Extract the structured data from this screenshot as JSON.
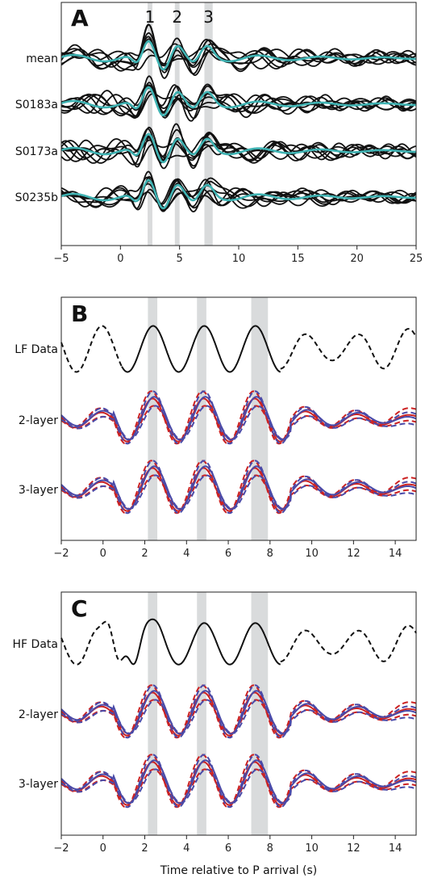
{
  "chart_data": [
    {
      "type": "line",
      "panel": "A",
      "xlim": [
        -5,
        25
      ],
      "xticks": [
        -5,
        0,
        5,
        10,
        15,
        20,
        25
      ],
      "tick_labels": [
        "−5",
        "0",
        "5",
        "10",
        "15",
        "20",
        "25"
      ],
      "band_labels": [
        "1",
        "2",
        "3"
      ],
      "bands": [
        [
          2.3,
          2.7
        ],
        [
          4.6,
          5.0
        ],
        [
          7.1,
          7.8
        ]
      ],
      "rows": [
        {
          "label": "mean",
          "offset": 3
        },
        {
          "label": "S0183a",
          "offset": 2
        },
        {
          "label": "S0173a",
          "offset": 1
        },
        {
          "label": "S0235b",
          "offset": 0
        }
      ],
      "series_colors": {
        "individual": "#111111",
        "mean": "#3fb3b3"
      }
    },
    {
      "type": "line",
      "panel": "B",
      "xlim": [
        -2,
        15
      ],
      "xticks": [
        -2,
        0,
        2,
        4,
        6,
        8,
        10,
        12,
        14
      ],
      "tick_labels": [
        "−2",
        "0",
        "2",
        "4",
        "6",
        "8",
        "10",
        "12",
        "14"
      ],
      "bands": [
        [
          2.15,
          2.6
        ],
        [
          4.5,
          4.95
        ],
        [
          7.1,
          7.9
        ]
      ],
      "rows": [
        {
          "label": "LF Data",
          "offset": 2
        },
        {
          "label": "2-layer",
          "offset": 1
        },
        {
          "label": "3-layer",
          "offset": 0
        }
      ],
      "series_colors": {
        "data": "#111111",
        "model_a": "#cc2222",
        "model_b": "#4a4aa8"
      }
    },
    {
      "type": "line",
      "panel": "C",
      "xlim": [
        -2,
        15
      ],
      "xticks": [
        -2,
        0,
        2,
        4,
        6,
        8,
        10,
        12,
        14
      ],
      "tick_labels": [
        "−2",
        "0",
        "2",
        "4",
        "6",
        "8",
        "10",
        "12",
        "14"
      ],
      "xlabel": "Time relative to P arrival (s)",
      "bands": [
        [
          2.15,
          2.6
        ],
        [
          4.5,
          4.95
        ],
        [
          7.1,
          7.9
        ]
      ],
      "rows": [
        {
          "label": "HF Data",
          "offset": 2
        },
        {
          "label": "2-layer",
          "offset": 1
        },
        {
          "label": "3-layer",
          "offset": 0
        }
      ],
      "series_colors": {
        "data": "#111111",
        "model_a": "#cc2222",
        "model_b": "#4a4aa8"
      }
    }
  ]
}
